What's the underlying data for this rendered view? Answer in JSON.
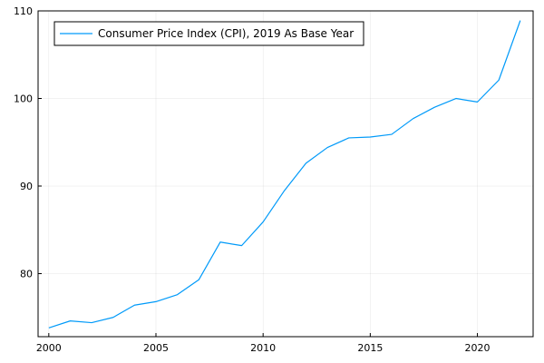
{
  "chart_data": {
    "type": "line",
    "title": "",
    "xlabel": "",
    "ylabel": "",
    "xlim": [
      1999.5,
      2022.6
    ],
    "ylim": [
      72.8,
      110
    ],
    "xticks": [
      2000,
      2005,
      2010,
      2015,
      2020
    ],
    "yticks": [
      80,
      90,
      100,
      110
    ],
    "grid": true,
    "legend_position": "top-left",
    "series": [
      {
        "name": "Consumer Price Index (CPI), 2019 As Base Year",
        "color": "#009af9",
        "x": [
          2000,
          2001,
          2002,
          2003,
          2004,
          2005,
          2006,
          2007,
          2008,
          2009,
          2010,
          2011,
          2012,
          2013,
          2014,
          2015,
          2016,
          2017,
          2018,
          2019,
          2020,
          2021,
          2022
        ],
        "y": [
          73.8,
          74.6,
          74.4,
          75.0,
          76.4,
          76.8,
          77.6,
          79.3,
          83.6,
          83.2,
          85.9,
          89.5,
          92.6,
          94.4,
          95.5,
          95.6,
          95.9,
          97.7,
          99.0,
          100.0,
          99.6,
          102.1,
          108.9
        ]
      }
    ]
  }
}
